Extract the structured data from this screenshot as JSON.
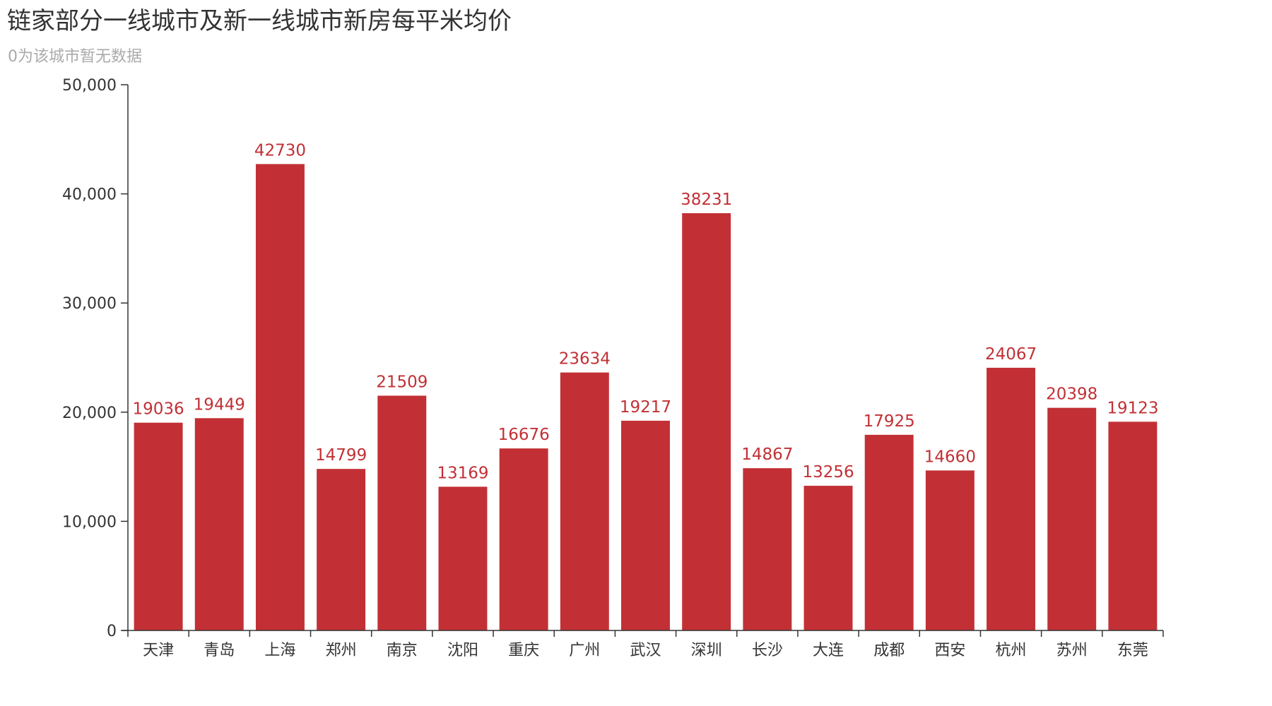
{
  "title": "链家部分一线城市及新一线城市新房每平米均价",
  "subtitle": "0为该城市暂无数据",
  "colors": {
    "bar": "#c23035",
    "axis": "#333333",
    "label": "#c23035",
    "subtitle": "#aaaaaa"
  },
  "chart_data": {
    "type": "bar",
    "categories": [
      "天津",
      "青岛",
      "上海",
      "郑州",
      "南京",
      "沈阳",
      "重庆",
      "广州",
      "武汉",
      "深圳",
      "长沙",
      "大连",
      "成都",
      "西安",
      "杭州",
      "苏州",
      "东莞"
    ],
    "series": [
      {
        "values": [
          19036,
          19449,
          42730,
          14799,
          21509,
          13169,
          16676,
          23634,
          19217,
          38231,
          14867,
          13256,
          17925,
          14660,
          24067,
          20398,
          19123
        ]
      }
    ],
    "ylim": [
      0,
      50000
    ],
    "yticks": [
      "0",
      "10,000",
      "20,000",
      "30,000",
      "40,000",
      "50,000"
    ],
    "ytick_values": [
      0,
      10000,
      20000,
      30000,
      40000,
      50000
    ],
    "grid": false,
    "data_labels": true
  }
}
